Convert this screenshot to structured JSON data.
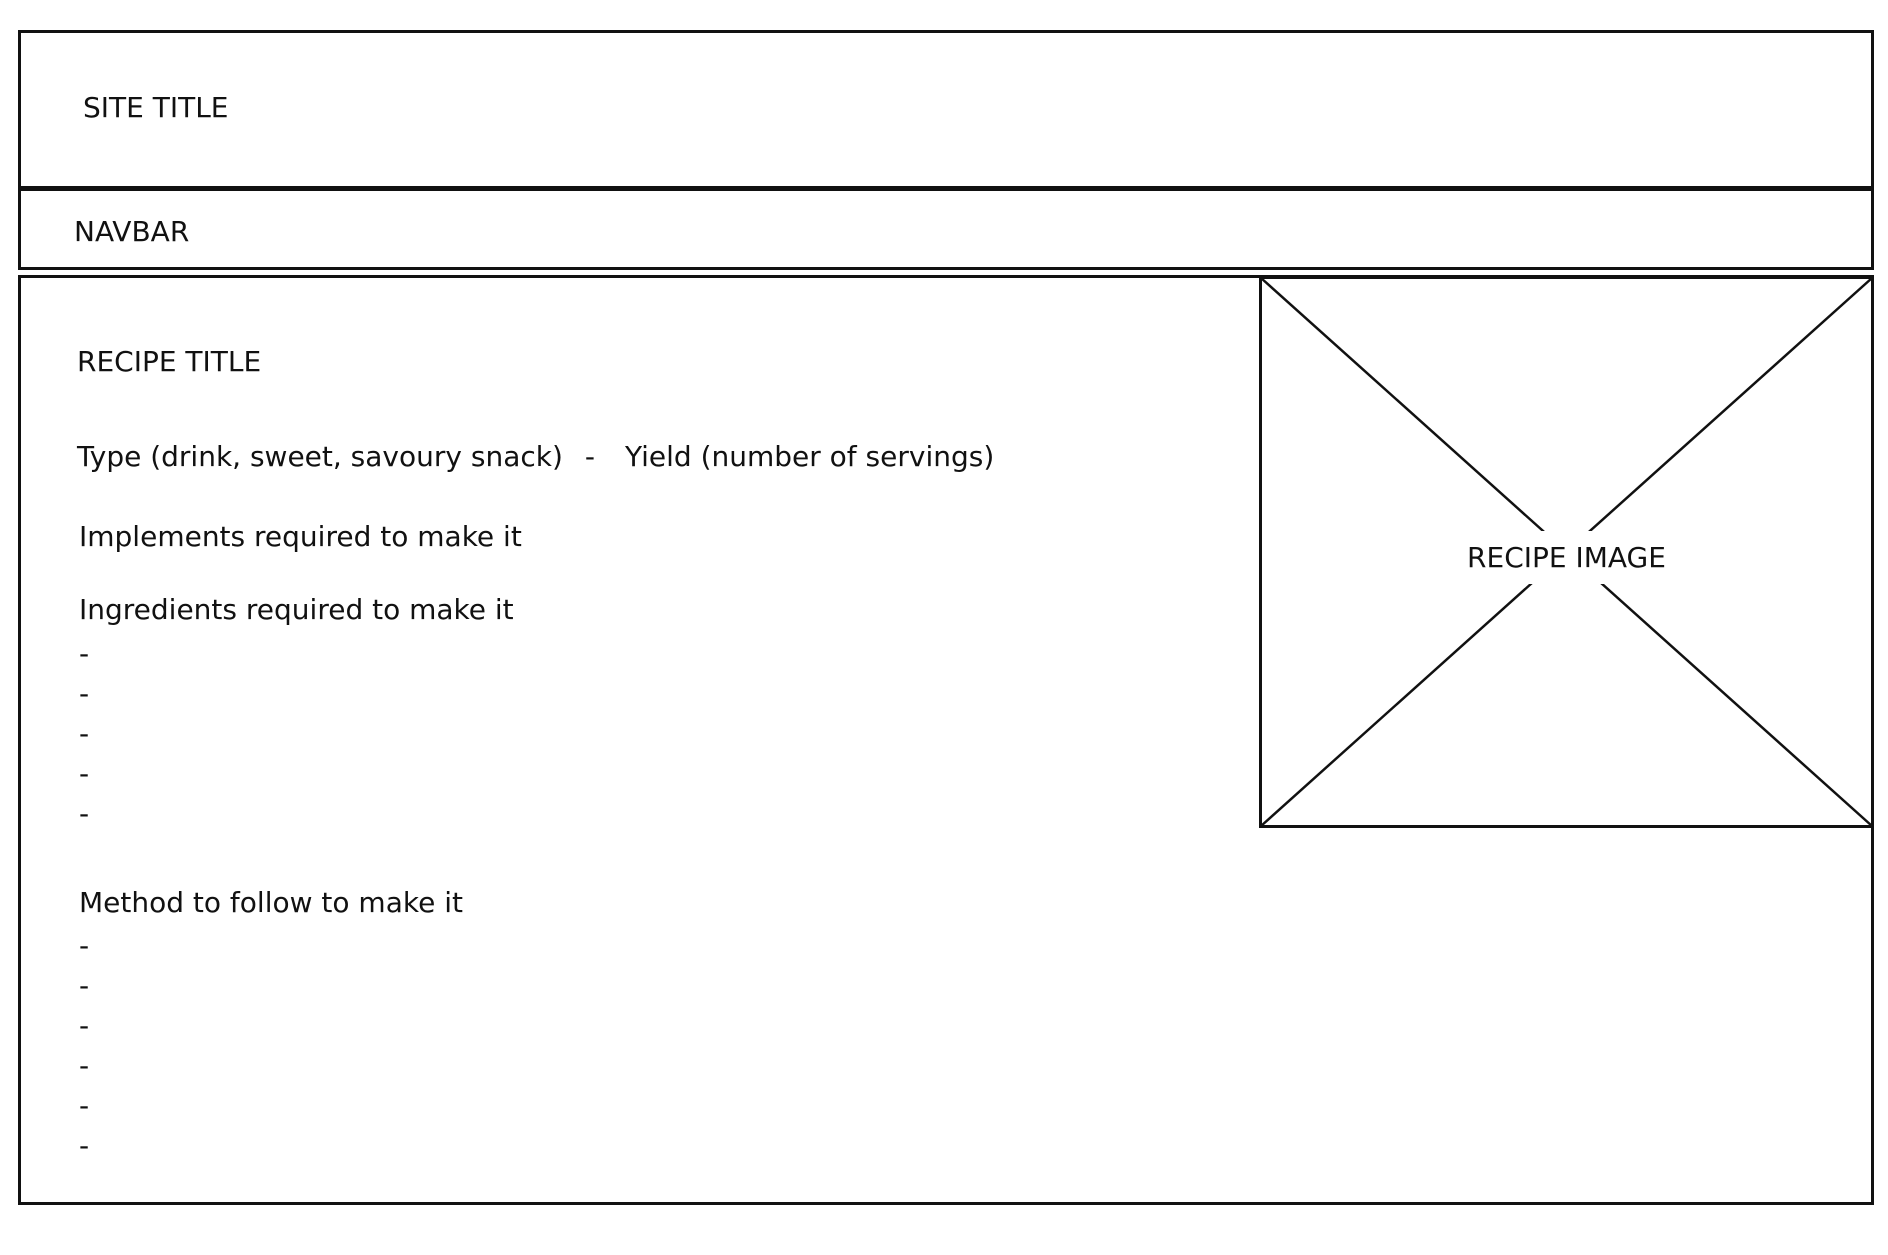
{
  "header": {
    "site_title": "SITE TITLE"
  },
  "navbar": {
    "label": "NAVBAR"
  },
  "recipe": {
    "title": "RECIPE TITLE",
    "type": "Type (drink, sweet, savoury snack)",
    "separator": "-",
    "yield": "Yield (number of servings)",
    "implements_label": "Implements required to make it",
    "ingredients_label": "Ingredients required to make it",
    "ingredients": [
      "-",
      "-",
      "-",
      "-",
      "-"
    ],
    "method_label": "Method to follow to make it",
    "method": [
      "-",
      "-",
      "-",
      "-",
      "-",
      "-"
    ],
    "image_label": "RECIPE IMAGE"
  }
}
